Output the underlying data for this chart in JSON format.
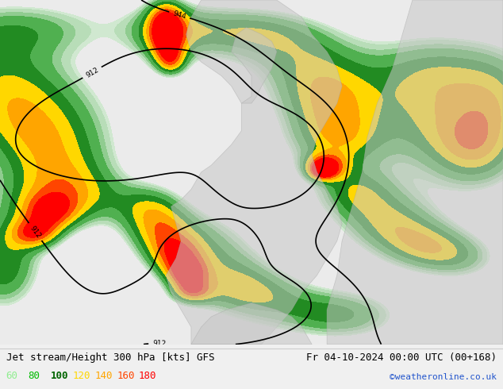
{
  "title_left": "Jet stream/Height 300 hPa [kts] GFS",
  "title_right": "Fr 04-10-2024 00:00 UTC (00+168)",
  "copyright": "©weatheronline.co.uk",
  "legend_values": [
    "60",
    "80",
    "100",
    "120",
    "140",
    "160",
    "180"
  ],
  "legend_colors": [
    "#90ee90",
    "#00bb00",
    "#006400",
    "#ffd700",
    "#ffa500",
    "#ff4500",
    "#ff0000"
  ],
  "fill_colors": [
    "#f0f0f0",
    "#d4ecd4",
    "#b0d8b0",
    "#78c878",
    "#32a832",
    "#006400",
    "#ffd700",
    "#ffa500",
    "#ff4500",
    "#ff0000"
  ],
  "wind_bounds": [
    0,
    55,
    60,
    70,
    80,
    100,
    120,
    140,
    160,
    180
  ],
  "contour_labels": [
    912,
    944
  ],
  "map_bg": "#e8e8e8",
  "land_color": "#c8c8c8",
  "info_bg": "#f0f0f0",
  "title_fontsize": 9,
  "legend_fontsize": 9,
  "figsize": [
    6.34,
    4.9
  ],
  "dpi": 100
}
